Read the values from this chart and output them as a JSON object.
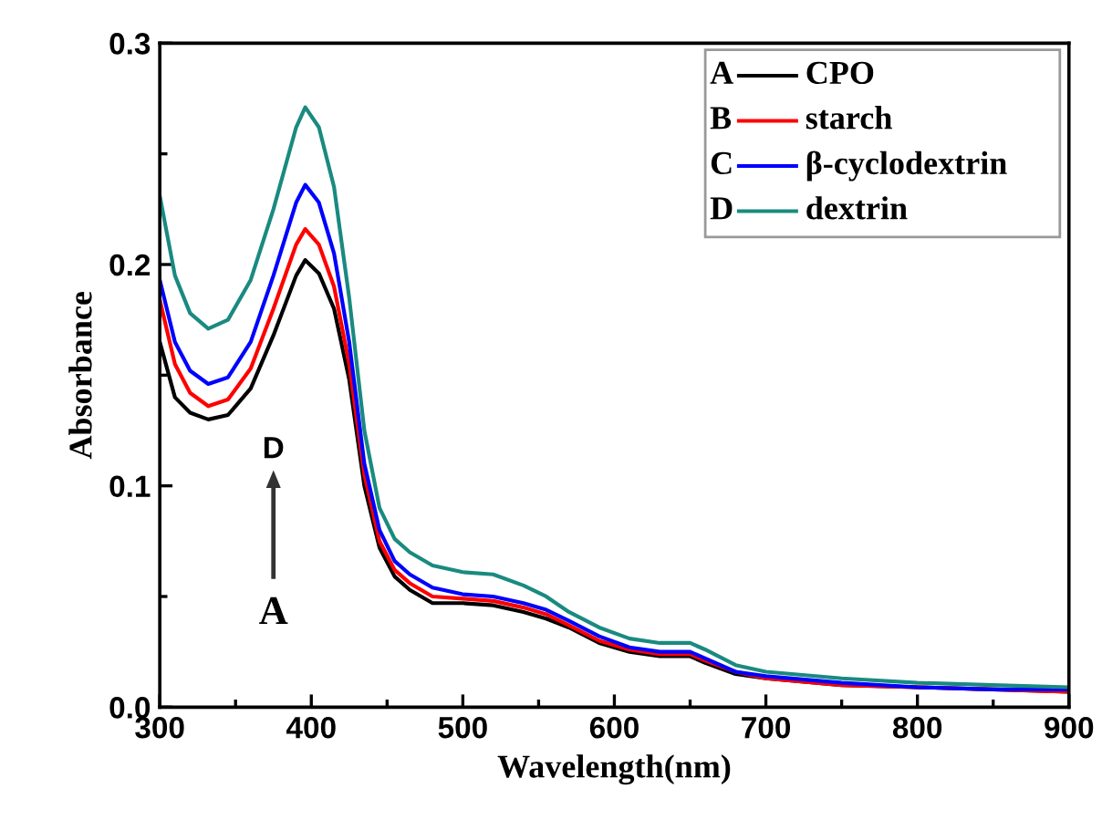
{
  "chart_data": {
    "type": "line",
    "xlabel": "Wavelength(nm)",
    "ylabel": "Absorbance",
    "x": [
      300,
      310,
      320,
      332,
      345,
      360,
      375,
      390,
      396,
      405,
      415,
      425,
      435,
      445,
      455,
      465,
      480,
      500,
      520,
      540,
      555,
      570,
      590,
      610,
      630,
      650,
      660,
      680,
      700,
      750,
      800,
      850,
      900
    ],
    "series": [
      {
        "name": "CPO",
        "color": "#000000",
        "values": [
          0.165,
          0.14,
          0.133,
          0.13,
          0.132,
          0.144,
          0.168,
          0.195,
          0.202,
          0.196,
          0.18,
          0.148,
          0.1,
          0.072,
          0.059,
          0.053,
          0.047,
          0.047,
          0.046,
          0.043,
          0.04,
          0.036,
          0.029,
          0.025,
          0.023,
          0.023,
          0.02,
          0.015,
          0.013,
          0.01,
          0.009,
          0.008,
          0.007
        ]
      },
      {
        "name": "starch",
        "color": "#ff0000",
        "values": [
          0.184,
          0.155,
          0.142,
          0.136,
          0.139,
          0.153,
          0.18,
          0.209,
          0.216,
          0.209,
          0.19,
          0.155,
          0.105,
          0.075,
          0.062,
          0.056,
          0.05,
          0.049,
          0.048,
          0.045,
          0.042,
          0.037,
          0.03,
          0.026,
          0.024,
          0.024,
          0.021,
          0.016,
          0.013,
          0.01,
          0.009,
          0.008,
          0.007
        ]
      },
      {
        "name": "β-cyclodextrin",
        "color": "#0000ff",
        "values": [
          0.193,
          0.165,
          0.152,
          0.146,
          0.149,
          0.165,
          0.195,
          0.228,
          0.236,
          0.228,
          0.205,
          0.165,
          0.11,
          0.08,
          0.066,
          0.06,
          0.054,
          0.051,
          0.05,
          0.047,
          0.044,
          0.039,
          0.032,
          0.027,
          0.025,
          0.025,
          0.022,
          0.016,
          0.014,
          0.011,
          0.009,
          0.008,
          0.008
        ]
      },
      {
        "name": "dextrin",
        "color": "#1a8a80",
        "values": [
          0.231,
          0.195,
          0.178,
          0.171,
          0.175,
          0.193,
          0.225,
          0.262,
          0.271,
          0.262,
          0.235,
          0.185,
          0.125,
          0.09,
          0.076,
          0.07,
          0.064,
          0.061,
          0.06,
          0.055,
          0.05,
          0.043,
          0.036,
          0.031,
          0.029,
          0.029,
          0.026,
          0.019,
          0.016,
          0.013,
          0.011,
          0.01,
          0.009
        ]
      }
    ],
    "annotations": [
      "A",
      "B",
      "C",
      "D",
      "D",
      "A"
    ],
    "xlim": [
      300,
      900
    ],
    "xticks": [
      300,
      400,
      500,
      600,
      700,
      800,
      900
    ],
    "ylim": [
      0,
      0.3
    ],
    "yticks": [
      {
        "value": 0,
        "label": "0.0"
      },
      0.1,
      0.2,
      0.3
    ],
    "legend": "top right",
    "grid": false,
    "marker": "none",
    "line_style": "solid"
  }
}
